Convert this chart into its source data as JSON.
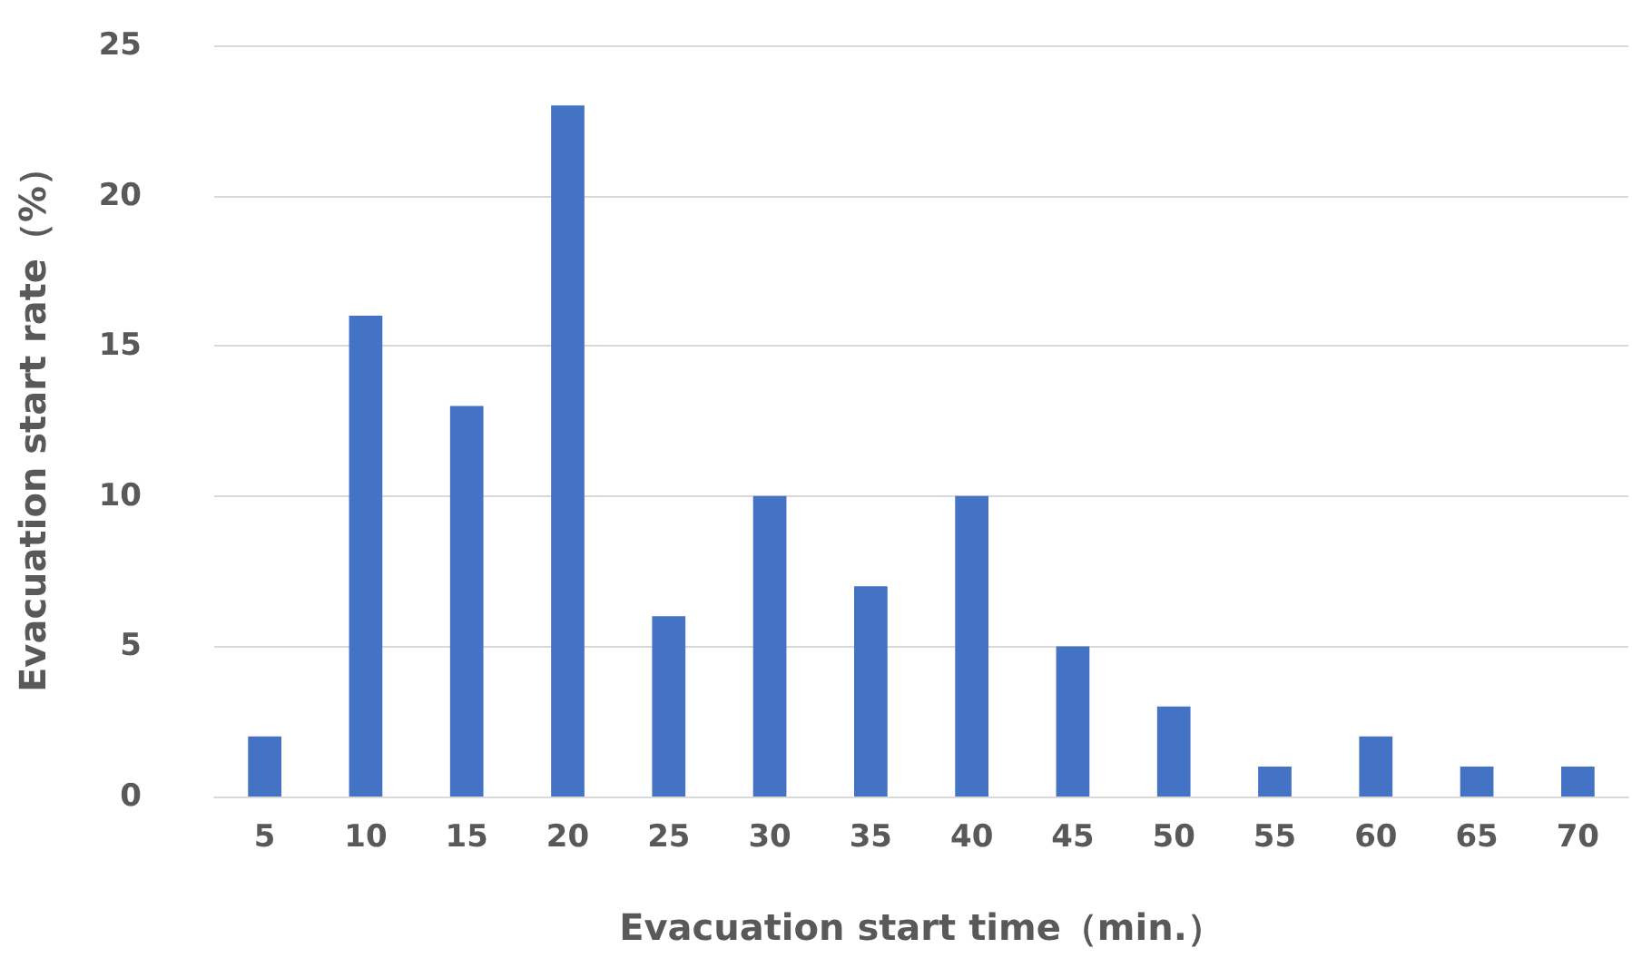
{
  "chart_data": {
    "type": "bar",
    "xlabel": "Evacuation start time（min.）",
    "ylabel": "Evacuation start rate（%）",
    "categories": [
      "5",
      "10",
      "15",
      "20",
      "25",
      "30",
      "35",
      "40",
      "45",
      "50",
      "55",
      "60",
      "65",
      "70"
    ],
    "values": [
      2,
      16,
      13,
      23,
      6,
      10,
      7,
      10,
      5,
      3,
      1,
      2,
      1,
      1
    ],
    "color": "#4472c4",
    "ylim": [
      0,
      25
    ],
    "yticks": [
      0,
      5,
      10,
      15,
      20,
      25
    ],
    "grid": "y"
  }
}
